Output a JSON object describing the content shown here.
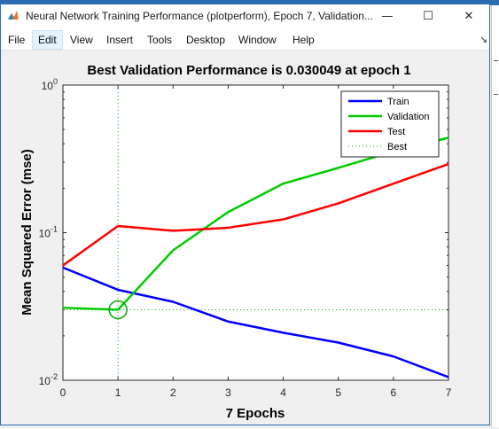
{
  "window": {
    "title": "Neural Network Training Performance (plotperform), Epoch 7, Validation...",
    "controls": {
      "minimize": "—",
      "maximize": "☐",
      "close": "✕"
    }
  },
  "menu": {
    "items": [
      "File",
      "Edit",
      "View",
      "Insert",
      "Tools",
      "Desktop",
      "Window",
      "Help"
    ],
    "active": "Edit",
    "dock_glyph": "↘"
  },
  "chart_data": {
    "type": "line",
    "title": "Best Validation Performance is 0.030049 at epoch 1",
    "xlabel": "7 Epochs",
    "ylabel": "Mean Squared Error  (mse)",
    "xlim": [
      0,
      7
    ],
    "ylim": [
      0.01,
      1
    ],
    "yscale": "log",
    "x_ticks": [
      "0",
      "1",
      "2",
      "3",
      "4",
      "5",
      "6",
      "7"
    ],
    "y_ticks": [
      {
        "base": "10",
        "exp": "0",
        "value": 1
      },
      {
        "base": "10",
        "exp": "-1",
        "value": 0.1
      },
      {
        "base": "10",
        "exp": "-2",
        "value": 0.01
      }
    ],
    "grid": false,
    "legend_position": "top-right",
    "x": [
      0,
      1,
      2,
      3,
      4,
      5,
      6,
      7
    ],
    "series": [
      {
        "name": "Train",
        "color": "#0000ff",
        "style": "solid",
        "values": [
          0.058,
          0.041,
          0.034,
          0.025,
          0.021,
          0.018,
          0.0145,
          0.0105
        ]
      },
      {
        "name": "Validation",
        "color": "#00cc00",
        "style": "solid",
        "values": [
          0.031,
          0.030049,
          0.076,
          0.138,
          0.215,
          0.275,
          0.355,
          0.44
        ]
      },
      {
        "name": "Test",
        "color": "#ff0000",
        "style": "solid",
        "values": [
          0.06,
          0.111,
          0.103,
          0.108,
          0.123,
          0.158,
          0.215,
          0.292
        ]
      },
      {
        "name": "Best",
        "color": "#00aa00",
        "style": "dotted"
      }
    ],
    "best": {
      "epoch": 1,
      "value": 0.030049
    }
  }
}
